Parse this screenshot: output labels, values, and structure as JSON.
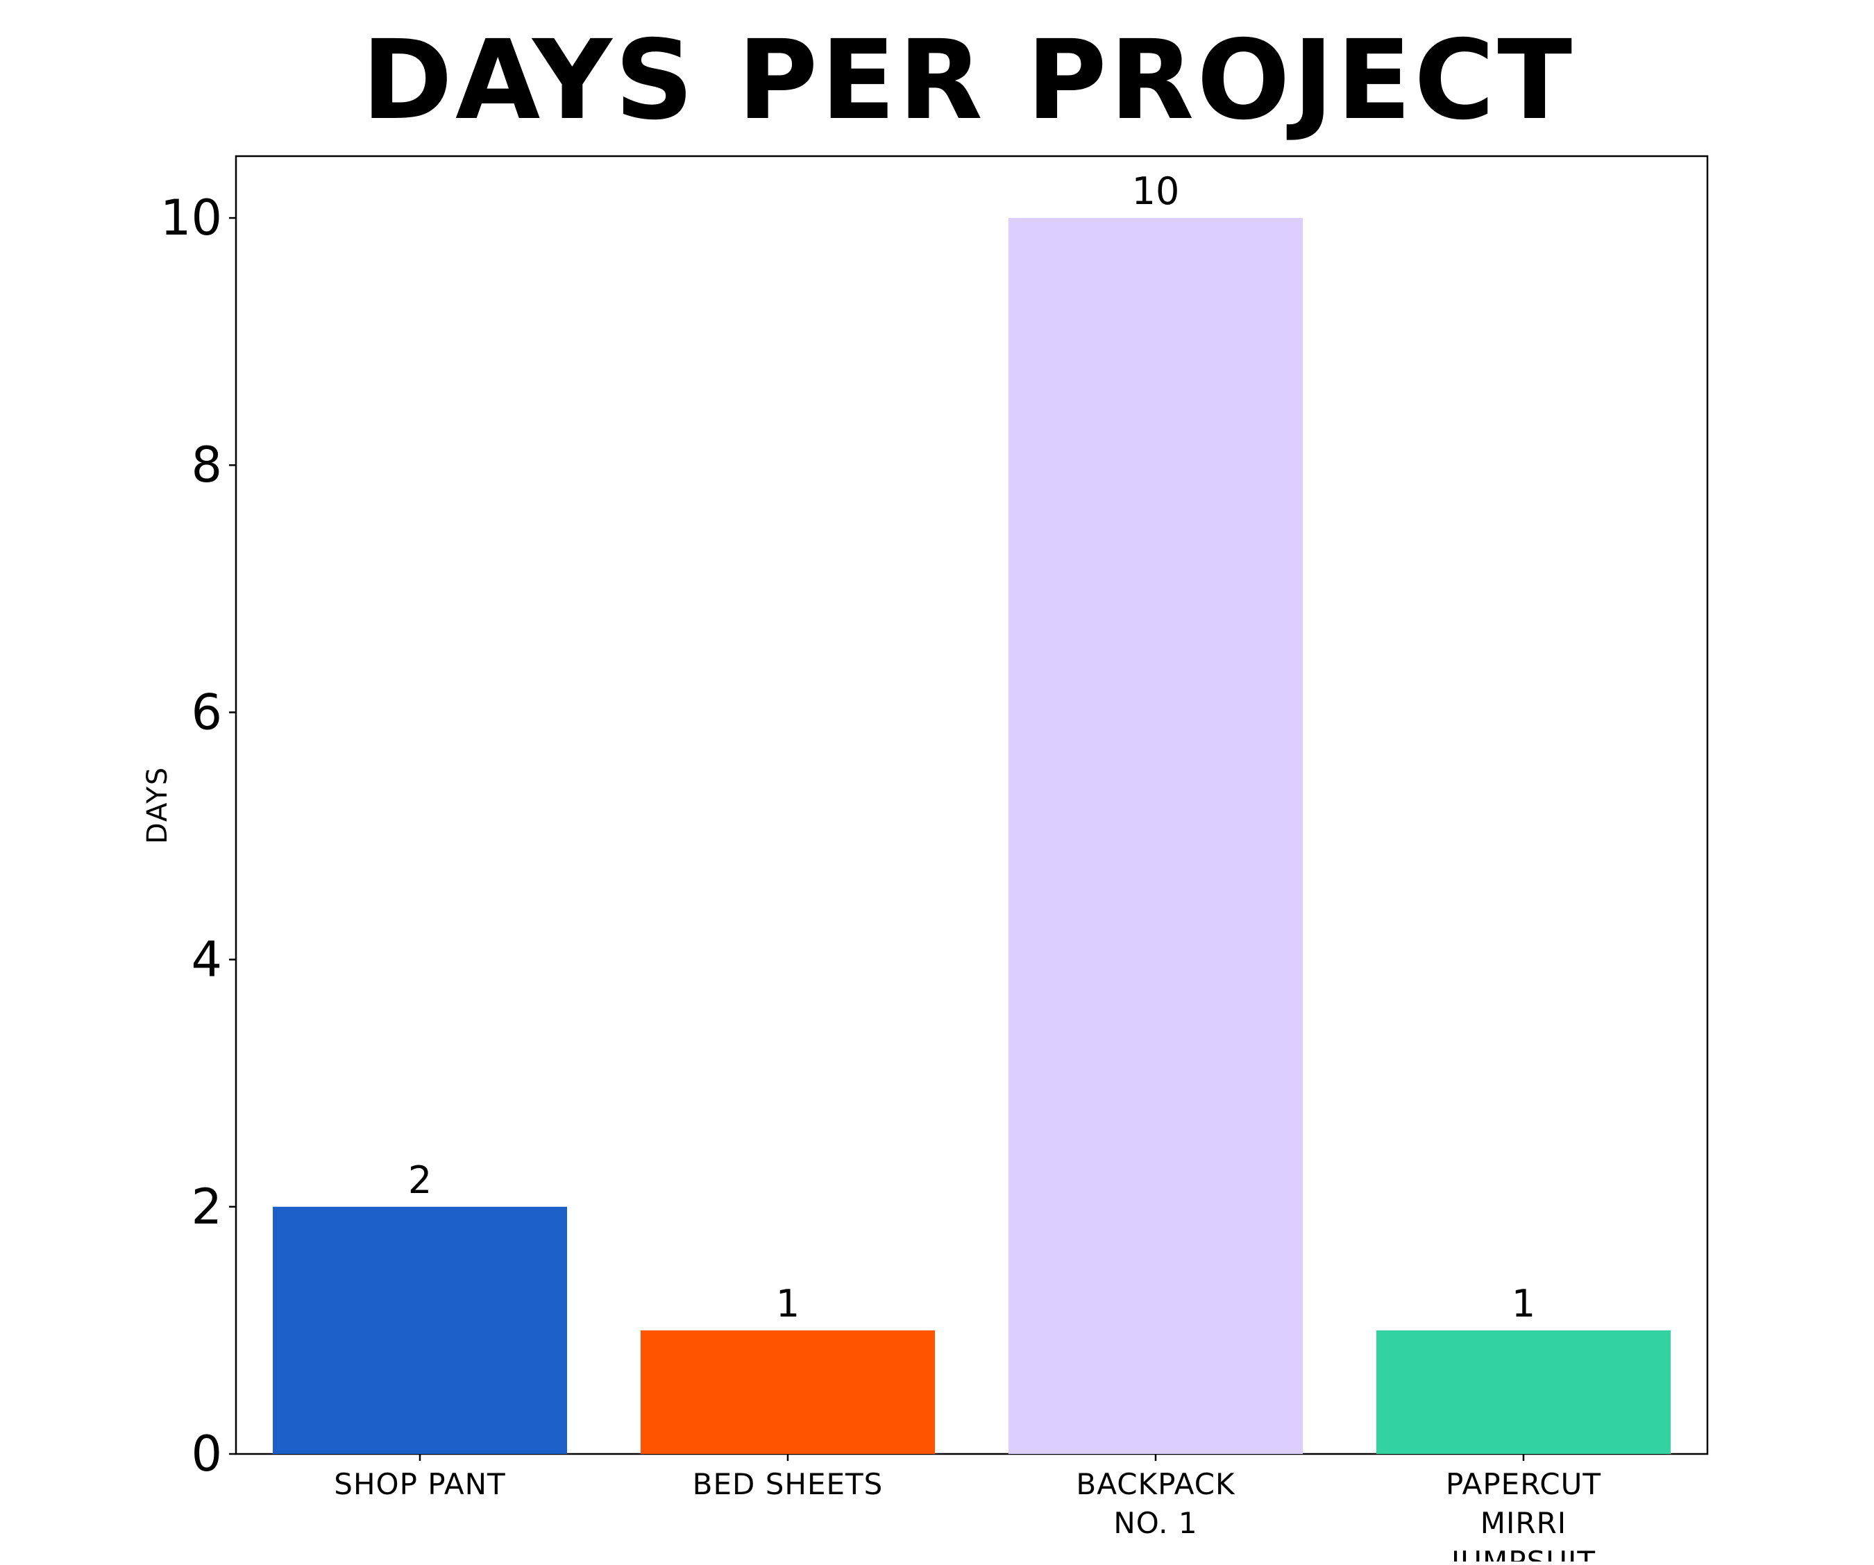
{
  "chart_data": {
    "type": "bar",
    "title": "DAYS PER PROJECT",
    "ylabel": "DAYS",
    "xlabel": "",
    "categories": [
      [
        "SHOP PANT"
      ],
      [
        "BED SHEETS"
      ],
      [
        "BACKPACK",
        "NO. 1"
      ],
      [
        "PAPERCUT",
        "MIRRI",
        "JUMPSUIT"
      ]
    ],
    "values": [
      2,
      1,
      10,
      1
    ],
    "data_labels": [
      "2",
      "1",
      "10",
      "1"
    ],
    "colors": [
      "#1d5fc8",
      "#ff5500",
      "#dccfff",
      "#33d3a1"
    ],
    "ylim": [
      0,
      10.5
    ],
    "yticks": [
      0,
      2,
      4,
      6,
      8,
      10
    ],
    "ytick_labels": [
      "0",
      "2",
      "4",
      "6",
      "8",
      "10"
    ],
    "grid": false,
    "legend": "none"
  }
}
